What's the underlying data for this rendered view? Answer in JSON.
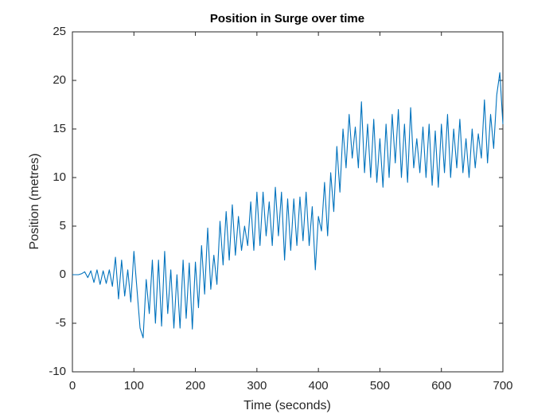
{
  "chart_data": {
    "type": "line",
    "title": "Position in Surge over time",
    "x_label": "Time (seconds)",
    "y_label": "Position (metres)",
    "color": "#0072bd",
    "xlim": [
      0,
      700
    ],
    "xticks": [
      0,
      100,
      200,
      300,
      400,
      500,
      600,
      700
    ],
    "ylim": [
      -10,
      25
    ],
    "yticks": [
      -10,
      -5,
      0,
      5,
      10,
      15,
      20,
      25
    ],
    "x": [
      0,
      5,
      10,
      15,
      20,
      25,
      30,
      35,
      40,
      45,
      50,
      55,
      60,
      65,
      70,
      75,
      80,
      85,
      90,
      95,
      100,
      105,
      110,
      115,
      120,
      125,
      130,
      135,
      140,
      145,
      150,
      155,
      160,
      165,
      170,
      175,
      180,
      185,
      190,
      195,
      200,
      205,
      210,
      215,
      220,
      225,
      230,
      235,
      240,
      245,
      250,
      255,
      260,
      265,
      270,
      275,
      280,
      285,
      290,
      295,
      300,
      305,
      310,
      315,
      320,
      325,
      330,
      335,
      340,
      345,
      350,
      355,
      360,
      365,
      370,
      375,
      380,
      385,
      390,
      395,
      400,
      405,
      410,
      415,
      420,
      425,
      430,
      435,
      440,
      445,
      450,
      455,
      460,
      465,
      470,
      475,
      480,
      485,
      490,
      495,
      500,
      505,
      510,
      515,
      520,
      525,
      530,
      535,
      540,
      545,
      550,
      555,
      560,
      565,
      570,
      575,
      580,
      585,
      590,
      595,
      600,
      605,
      610,
      615,
      620,
      625,
      630,
      635,
      640,
      645,
      650,
      655,
      660,
      665,
      670,
      675,
      680,
      685,
      690,
      695,
      700
    ],
    "values": [
      0,
      0,
      0,
      0.1,
      0.3,
      -0.3,
      0.4,
      -0.8,
      0.5,
      -1,
      0.4,
      -0.9,
      0.5,
      -1.2,
      1.8,
      -2.5,
      1.5,
      -2.2,
      0.5,
      -2.8,
      2.4,
      -1.5,
      -5.5,
      -6.5,
      -0.5,
      -4,
      1.5,
      -5,
      1.5,
      -5.3,
      2.4,
      -4,
      0.5,
      -5.5,
      0,
      -5.5,
      1.5,
      -4.5,
      1.2,
      -5.6,
      1.3,
      -3.4,
      3,
      -2,
      4.8,
      -1.5,
      2,
      -1,
      5.5,
      1,
      6.5,
      1.5,
      7.2,
      2,
      6,
      2.5,
      5,
      3,
      7.5,
      2.5,
      8.5,
      3,
      8.5,
      4,
      7.5,
      3,
      9,
      4,
      8.5,
      1.5,
      7.8,
      2.5,
      7.8,
      3,
      8,
      3.5,
      8.5,
      3,
      7,
      0.5,
      6,
      4.5,
      9.5,
      4,
      10.5,
      6.5,
      13.2,
      8.5,
      15,
      11,
      16.5,
      12,
      15.2,
      11,
      17.8,
      10.5,
      15.5,
      10,
      16,
      9.5,
      14,
      9,
      15.5,
      10,
      16.5,
      11.5,
      17,
      10,
      15.5,
      9.5,
      17.2,
      11,
      14,
      10.5,
      15.2,
      10,
      15.5,
      9.2,
      14.8,
      9,
      15.5,
      10.5,
      16.5,
      10,
      15,
      11,
      16,
      10.5,
      14,
      10,
      15,
      11,
      14.5,
      12,
      18,
      11.5,
      16.5,
      13,
      18.5,
      20.8,
      15.5
    ]
  }
}
